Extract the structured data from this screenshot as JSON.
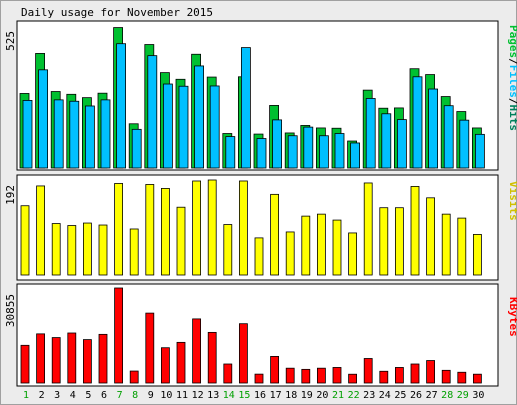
{
  "title": "Daily usage for November 2015",
  "colors": {
    "frame_bg": "#ECECEC",
    "panel_bg": "#FFFFFF",
    "pages": "#00C030",
    "files": "#00C0FF",
    "hits": "#00805C",
    "visits": "#FFFF00",
    "kbytes": "#FF0000",
    "weekday": "#000000",
    "weekend": "#00A000"
  },
  "chart_data": [
    {
      "type": "bar",
      "name": "usage",
      "ymax_label": "525",
      "legend": [
        "Pages",
        "Files",
        "Hits"
      ],
      "legend_separator": "/",
      "categories": [
        "1",
        "2",
        "3",
        "4",
        "5",
        "6",
        "7",
        "8",
        "9",
        "10",
        "11",
        "12",
        "13",
        "14",
        "15",
        "16",
        "17",
        "18",
        "19",
        "20",
        "21",
        "22",
        "23",
        "24",
        "25",
        "26",
        "27",
        "28",
        "29",
        "30"
      ],
      "weekend_days": [
        "1",
        "7",
        "8",
        "14",
        "15",
        "21",
        "22",
        "28",
        "29"
      ],
      "ylim": [
        0,
        525
      ],
      "series": [
        {
          "name": "Hits",
          "values": [
            258,
            373,
            262,
            252,
            238,
            260,
            505,
            151,
            449,
            335,
            323,
            424,
            332,
            124,
            509,
            119,
            201,
            130,
            159,
            127,
            143,
            97,
            288,
            210,
            216,
            365,
            321,
            256,
            207,
            143
          ]
        },
        {
          "name": "Files",
          "values": [
            243,
            353,
            245,
            240,
            223,
            245,
            447,
            139,
            404,
            302,
            294,
            367,
            295,
            113,
            433,
            106,
            173,
            116,
            147,
            116,
            124,
            90,
            250,
            195,
            174,
            328,
            284,
            224,
            172,
            121
          ]
        },
        {
          "name": "Pages",
          "values": [
            268,
            412,
            275,
            265,
            253,
            269,
            505,
            159,
            444,
            343,
            319,
            409,
            327,
            124,
            328,
            122,
            225,
            126,
            153,
            144,
            143,
            97,
            280,
            215,
            216,
            357,
            336,
            257,
            203,
            144
          ]
        }
      ]
    },
    {
      "type": "bar",
      "name": "visits",
      "ymax_label": "192",
      "legend": [
        "Visits"
      ],
      "categories": [
        "1",
        "2",
        "3",
        "4",
        "5",
        "6",
        "7",
        "8",
        "9",
        "10",
        "11",
        "12",
        "13",
        "14",
        "15",
        "16",
        "17",
        "18",
        "19",
        "20",
        "21",
        "22",
        "23",
        "24",
        "25",
        "26",
        "27",
        "28",
        "29",
        "30"
      ],
      "ylim": [
        0,
        192
      ],
      "values": [
        140,
        180,
        104,
        100,
        105,
        101,
        185,
        93,
        183,
        175,
        137,
        190,
        192,
        102,
        190,
        75,
        163,
        87,
        119,
        123,
        111,
        85,
        186,
        136,
        136,
        179,
        156,
        123,
        115,
        82
      ]
    },
    {
      "type": "bar",
      "name": "kbytes",
      "ymax_label": "30855",
      "legend": [
        "KBytes"
      ],
      "categories": [
        "1",
        "2",
        "3",
        "4",
        "5",
        "6",
        "7",
        "8",
        "9",
        "10",
        "11",
        "12",
        "13",
        "14",
        "15",
        "16",
        "17",
        "18",
        "19",
        "20",
        "21",
        "22",
        "23",
        "24",
        "25",
        "26",
        "27",
        "28",
        "29",
        "30"
      ],
      "ylim": [
        0,
        30855
      ],
      "values": [
        12240,
        15960,
        14760,
        16240,
        14100,
        15800,
        30855,
        3880,
        22700,
        11460,
        13200,
        20820,
        16440,
        6170,
        19260,
        2880,
        8640,
        4810,
        4430,
        4810,
        5050,
        2850,
        7960,
        3810,
        5050,
        6170,
        7300,
        4120,
        3490,
        2860
      ]
    }
  ]
}
